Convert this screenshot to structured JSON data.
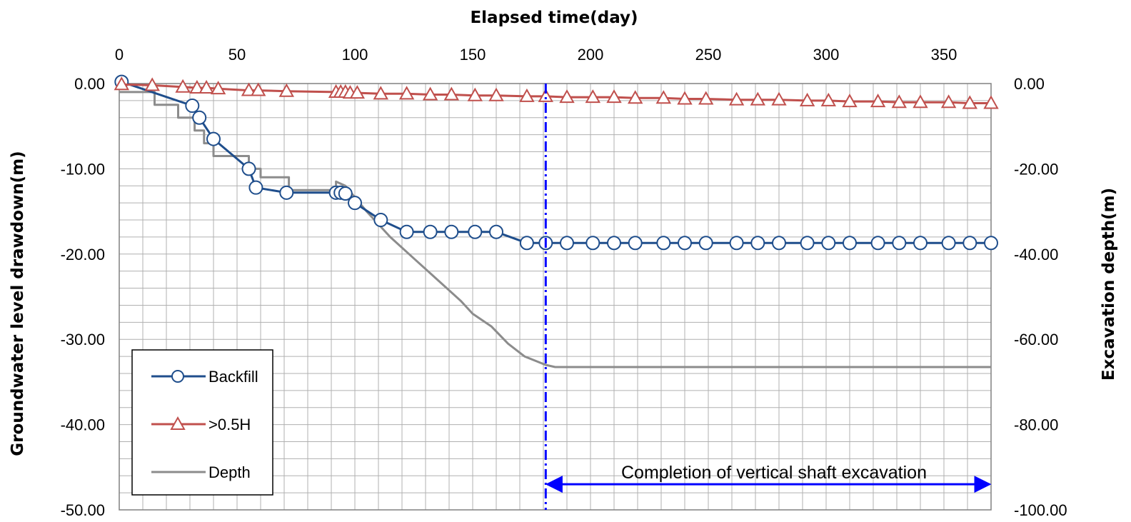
{
  "chart_data": {
    "type": "line",
    "title": "",
    "xlabel": "Elapsed time(day)",
    "ylabel_left": "Groundwater level drawdown(m)",
    "ylabel_right": "Excavation depth(m)",
    "xlim": [
      0,
      370
    ],
    "ylim_left": [
      -50,
      0
    ],
    "ylim_right": [
      -100,
      0
    ],
    "x_ticks": [
      0,
      50,
      100,
      150,
      200,
      250,
      300,
      350
    ],
    "x_tick_labels": [
      "0",
      "50",
      "100",
      "150",
      "200",
      "250",
      "300",
      "350"
    ],
    "y_left_ticks": [
      0,
      -10,
      -20,
      -30,
      -40,
      -50
    ],
    "y_left_tick_labels": [
      "0.00",
      "-10.00",
      "-20.00",
      "-30.00",
      "-40.00",
      "-50.00"
    ],
    "y_right_ticks": [
      0,
      -20,
      -40,
      -60,
      -80,
      -100
    ],
    "y_right_tick_labels": [
      "0.00",
      "-20.00",
      "-40.00",
      "-60.00",
      "-80.00",
      "-100.00"
    ],
    "grid": true,
    "legend_position": "bottom-left",
    "series": [
      {
        "name": "Backfill",
        "axis": "left",
        "style": "line-circle",
        "color": "#1f4e8c",
        "x": [
          1,
          31,
          34,
          40,
          55,
          58,
          71,
          92,
          94,
          96,
          100,
          111,
          122,
          132,
          141,
          151,
          160,
          173,
          181,
          190,
          201,
          210,
          219,
          231,
          240,
          249,
          262,
          271,
          280,
          292,
          301,
          310,
          322,
          331,
          340,
          352,
          361,
          370
        ],
        "y": [
          0.2,
          -2.6,
          -4.0,
          -6.5,
          -10.0,
          -12.2,
          -12.8,
          -12.8,
          -12.8,
          -12.9,
          -14.0,
          -16.0,
          -17.4,
          -17.4,
          -17.4,
          -17.4,
          -17.4,
          -18.7,
          -18.7,
          -18.7,
          -18.7,
          -18.7,
          -18.7,
          -18.7,
          -18.7,
          -18.7,
          -18.7,
          -18.7,
          -18.7,
          -18.7,
          -18.7,
          -18.7,
          -18.7,
          -18.7,
          -18.7,
          -18.7,
          -18.7,
          -18.7
        ]
      },
      {
        "name": ">0.5H",
        "axis": "left",
        "style": "line-triangle",
        "color": "#c0504d",
        "x": [
          1,
          14,
          27,
          33,
          37,
          42,
          55,
          59,
          71,
          92,
          94,
          96,
          98,
          101,
          111,
          122,
          132,
          141,
          151,
          160,
          173,
          181,
          190,
          201,
          210,
          219,
          231,
          240,
          249,
          262,
          271,
          280,
          292,
          301,
          310,
          322,
          331,
          340,
          352,
          361,
          370
        ],
        "y": [
          -0.1,
          -0.2,
          -0.4,
          -0.5,
          -0.5,
          -0.6,
          -0.8,
          -0.8,
          -0.9,
          -1.0,
          -1.0,
          -1.0,
          -1.1,
          -1.1,
          -1.2,
          -1.2,
          -1.3,
          -1.3,
          -1.4,
          -1.4,
          -1.5,
          -1.5,
          -1.6,
          -1.6,
          -1.6,
          -1.7,
          -1.7,
          -1.8,
          -1.8,
          -1.9,
          -1.9,
          -1.9,
          -2.0,
          -2.0,
          -2.1,
          -2.1,
          -2.2,
          -2.2,
          -2.2,
          -2.3,
          -2.3
        ]
      },
      {
        "name": "Depth",
        "axis": "right",
        "style": "line",
        "color": "#8c8c8c",
        "x": [
          0,
          15,
          15,
          25,
          25,
          32,
          32,
          36,
          36,
          40,
          40,
          55,
          55,
          60,
          60,
          72,
          72,
          92,
          92,
          96,
          105,
          115,
          125,
          135,
          145,
          150,
          158,
          165,
          172,
          181,
          185,
          370
        ],
        "y": [
          -2,
          -2,
          -5,
          -5,
          -8,
          -8,
          -11,
          -11,
          -14,
          -14,
          -17,
          -17,
          -20,
          -20,
          -22,
          -22,
          -25,
          -25,
          -23,
          -24,
          -30,
          -36,
          -41,
          -46,
          -51,
          -54,
          -57,
          -61,
          -64,
          -66,
          -66.5,
          -66.5
        ]
      }
    ],
    "annotations": {
      "marker_line_x": 181,
      "completion_text": "Completion of vertical shaft excavation",
      "arrow_from_x": 181,
      "arrow_to_x": 370,
      "arrow_y_right": -94,
      "annotation_color": "#0000ff"
    }
  }
}
